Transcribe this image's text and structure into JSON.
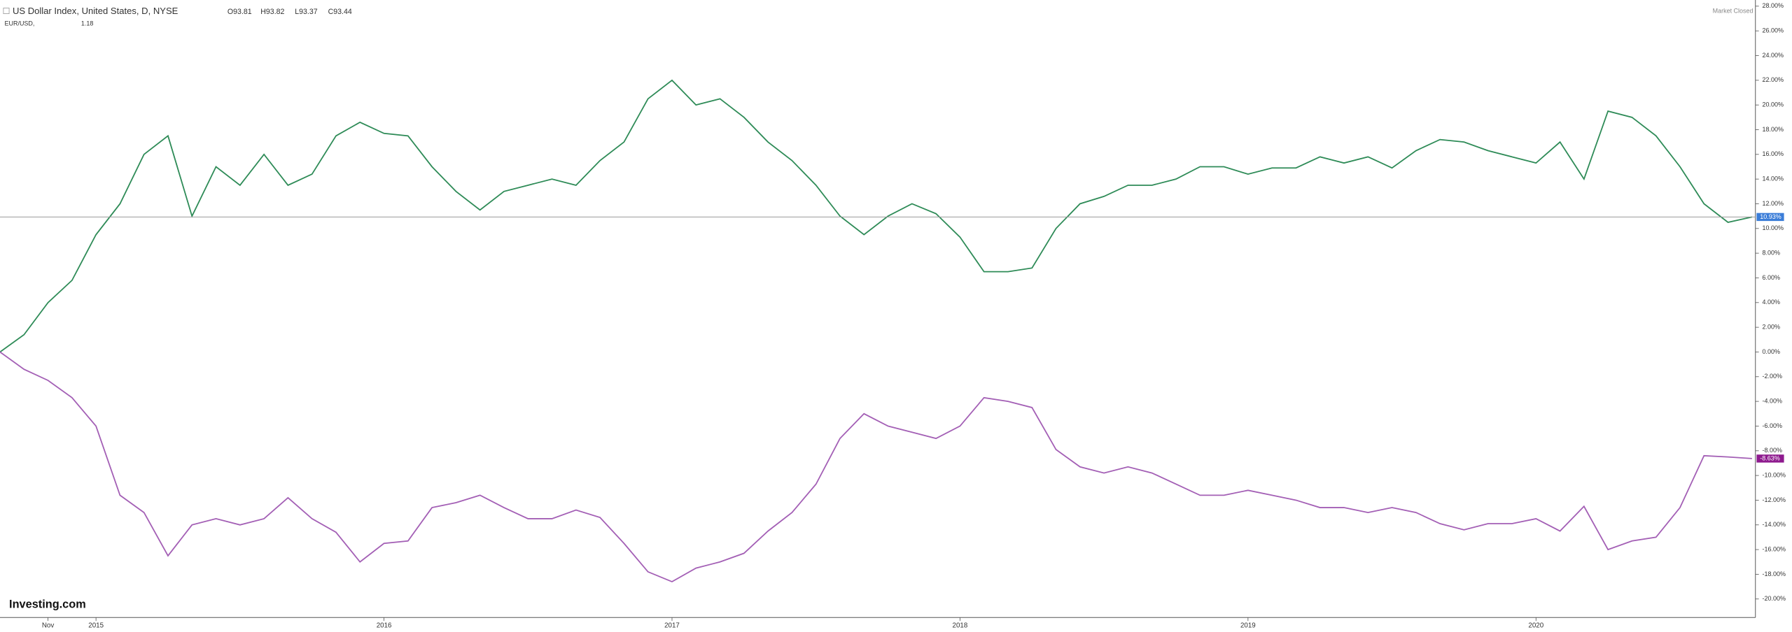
{
  "chart_data": {
    "type": "line",
    "legend": {
      "title": "US Dollar Index, United States, D, NYSE",
      "open": "O93.81",
      "high": "H93.82",
      "low": "L93.37",
      "close": "C93.44",
      "second": "EUR/USD,",
      "second_value": "1.18",
      "status": "Market Closed",
      "brand": "Investing.com"
    },
    "categories": [
      null,
      null,
      "Nov",
      null,
      "2015",
      null,
      null,
      null,
      null,
      null,
      null,
      null,
      null,
      null,
      null,
      null,
      "2016",
      null,
      null,
      null,
      null,
      null,
      null,
      null,
      null,
      null,
      null,
      null,
      "2017",
      null,
      null,
      null,
      null,
      null,
      null,
      null,
      null,
      null,
      null,
      null,
      "2018",
      null,
      null,
      null,
      null,
      null,
      null,
      null,
      null,
      null,
      null,
      null,
      "2019",
      null,
      null,
      null,
      null,
      null,
      null,
      null,
      null,
      null,
      null,
      null,
      "2020",
      null,
      null,
      null,
      null,
      null,
      null,
      null,
      null,
      null
    ],
    "series": [
      {
        "name": "US Dollar Index",
        "color": "#2e8b57",
        "current_label": "10.93%",
        "label_color": "#3b7dd8",
        "values": [
          0,
          1.4,
          4,
          5.8,
          9.5,
          12,
          16,
          17.5,
          11,
          15,
          13.5,
          16,
          13.5,
          14.4,
          17.5,
          18.6,
          17.7,
          17.5,
          15,
          13,
          11.5,
          13,
          13.5,
          14,
          13.5,
          15.5,
          17,
          20.5,
          22,
          20,
          20.5,
          19,
          17,
          15.5,
          13.5,
          11,
          9.5,
          11,
          12,
          11.2,
          9.3,
          6.5,
          6.5,
          6.8,
          10,
          12,
          12.6,
          13.5,
          13.5,
          14,
          15,
          15,
          14.4,
          14.9,
          14.9,
          15.8,
          15.3,
          15.8,
          14.9,
          16.3,
          17.2,
          17,
          16.3,
          15.8,
          15.3,
          17,
          14,
          19.5,
          19,
          17.5,
          15,
          12,
          10.5,
          10.93
        ]
      },
      {
        "name": "EUR/USD",
        "color": "#a35fb5",
        "current_label": "-8.63%",
        "label_color": "#8e1a8e",
        "values": [
          0,
          -1.4,
          -2.3,
          -3.7,
          -6,
          -11.6,
          -13,
          -16.5,
          -14,
          -13.5,
          -14,
          -13.5,
          -11.8,
          -13.5,
          -14.6,
          -17,
          -15.5,
          -15.3,
          -12.6,
          -12.2,
          -11.6,
          -12.6,
          -13.5,
          -13.5,
          -12.8,
          -13.4,
          -15.5,
          -17.8,
          -18.6,
          -17.5,
          -17,
          -16.3,
          -14.5,
          -13,
          -10.7,
          -7,
          -5,
          -6,
          -6.5,
          -7,
          -6,
          -3.7,
          -4,
          -4.5,
          -7.9,
          -9.3,
          -9.8,
          -9.3,
          -9.8,
          -10.7,
          -11.6,
          -11.6,
          -11.2,
          -11.6,
          -12,
          -12.6,
          -12.6,
          -13,
          -12.6,
          -13,
          -13.9,
          -14.4,
          -13.9,
          -13.9,
          -13.5,
          -14.5,
          -12.5,
          -16,
          -15.3,
          -15,
          -12.6,
          -8.4,
          -8.5,
          -8.63
        ]
      }
    ],
    "ylim": [
      -21.5,
      28.5
    ],
    "yticks": [
      {
        "value": 28,
        "label": "28.00%"
      },
      {
        "value": 26,
        "label": "26.00%"
      },
      {
        "value": 24,
        "label": "24.00%"
      },
      {
        "value": 22,
        "label": "22.00%"
      },
      {
        "value": 20,
        "label": "20.00%"
      },
      {
        "value": 18,
        "label": "18.00%"
      },
      {
        "value": 16,
        "label": "16.00%"
      },
      {
        "value": 14,
        "label": "14.00%"
      },
      {
        "value": 12,
        "label": "12.00%"
      },
      {
        "value": 10,
        "label": "10.00%"
      },
      {
        "value": 8,
        "label": "8.00%"
      },
      {
        "value": 6,
        "label": "6.00%"
      },
      {
        "value": 4,
        "label": "4.00%"
      },
      {
        "value": 2,
        "label": "2.00%"
      },
      {
        "value": 0,
        "label": "0.00%"
      },
      {
        "value": -2,
        "label": "-2.00%"
      },
      {
        "value": -4,
        "label": "-4.00%"
      },
      {
        "value": -6,
        "label": "-6.00%"
      },
      {
        "value": -8,
        "label": "-8.00%"
      },
      {
        "value": -10,
        "label": "-10.00%"
      },
      {
        "value": -12,
        "label": "-12.00%"
      },
      {
        "value": -14,
        "label": "-14.00%"
      },
      {
        "value": -16,
        "label": "-16.00%"
      },
      {
        "value": -18,
        "label": "-18.00%"
      },
      {
        "value": -20,
        "label": "-20.00%"
      }
    ]
  }
}
